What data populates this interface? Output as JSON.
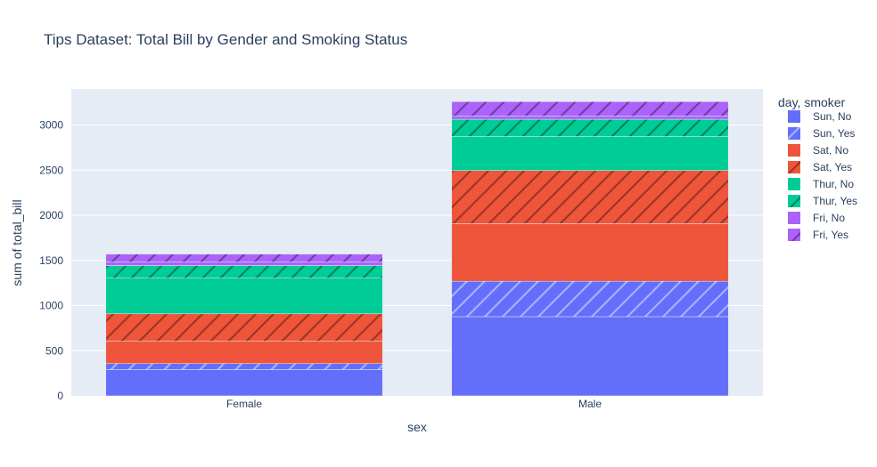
{
  "chart_data": {
    "type": "bar",
    "barmode": "stack",
    "title": "Tips Dataset: Total Bill by Gender and Smoking Status",
    "xlabel": "sex",
    "ylabel": "sum of total_bill",
    "categories": [
      "Female",
      "Male"
    ],
    "ylim": [
      0,
      3400
    ],
    "yticks": [
      0,
      500,
      1000,
      1500,
      2000,
      2500,
      3000
    ],
    "grid": true,
    "legend": {
      "title": "day, smoker",
      "placement": "right"
    },
    "series": [
      {
        "name": "Sun, No",
        "values": [
          291.5,
          877.3
        ],
        "color": "#636efa",
        "pattern": "none"
      },
      {
        "name": "Sun, Yes",
        "values": [
          66.2,
          392.1
        ],
        "color": "#636efa",
        "pattern": "/"
      },
      {
        "name": "Sat, No",
        "values": [
          247.1,
          637.7
        ],
        "color": "#ef553b",
        "pattern": "none"
      },
      {
        "name": "Sat, Yes",
        "values": [
          304.0,
          589.6
        ],
        "color": "#ef553b",
        "pattern": "/"
      },
      {
        "name": "Thur, No",
        "values": [
          395.0,
          375.5
        ],
        "color": "#00cc96",
        "pattern": "none"
      },
      {
        "name": "Thur, Yes",
        "values": [
          139.4,
          191.7
        ],
        "color": "#00cc96",
        "pattern": "/"
      },
      {
        "name": "Fri, No",
        "values": [
          38.7,
          34.9
        ],
        "color": "#ab63fa",
        "pattern": "none"
      },
      {
        "name": "Fri, Yes",
        "values": [
          88.6,
          160.7
        ],
        "color": "#ab63fa",
        "pattern": "/"
      }
    ]
  }
}
